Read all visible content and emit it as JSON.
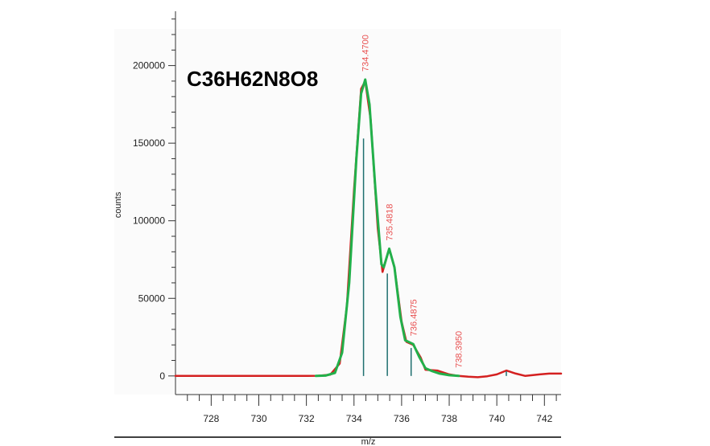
{
  "chart_data": {
    "type": "line",
    "title": "C36H62N8O8",
    "xlabel": "m/z",
    "ylabel": "counts",
    "xlim": [
      726.5,
      742.7
    ],
    "ylim": [
      -12000,
      235000
    ],
    "x_ticks": [
      728,
      730,
      732,
      734,
      736,
      738,
      740,
      742
    ],
    "y_ticks": [
      0,
      50000,
      100000,
      150000,
      200000
    ],
    "grid": false,
    "colors": {
      "measured": "#d42020",
      "fit": "#22b04a",
      "sticks": "#1f6f6f",
      "peak_labels": "#e85050",
      "axis": "#333333"
    },
    "series": [
      {
        "style": "measured",
        "points": [
          [
            726.5,
            0
          ],
          [
            732,
            0
          ],
          [
            732.5,
            100
          ],
          [
            733,
            800
          ],
          [
            733.4,
            8000
          ],
          [
            733.7,
            45000
          ],
          [
            734,
            120000
          ],
          [
            734.3,
            185000
          ],
          [
            734.47,
            190000
          ],
          [
            734.7,
            165000
          ],
          [
            735,
            95000
          ],
          [
            735.2,
            67000
          ],
          [
            735.48,
            82000
          ],
          [
            735.7,
            70000
          ],
          [
            736,
            35000
          ],
          [
            736.2,
            22000
          ],
          [
            736.49,
            20000
          ],
          [
            736.8,
            12000
          ],
          [
            737,
            4000
          ],
          [
            737.5,
            3500
          ],
          [
            738,
            1000
          ],
          [
            738.39,
            0
          ],
          [
            738.8,
            -500
          ],
          [
            739.2,
            -800
          ],
          [
            739.6,
            -200
          ],
          [
            740,
            1000
          ],
          [
            740.4,
            3500
          ],
          [
            740.8,
            1500
          ],
          [
            741.2,
            0
          ],
          [
            741.8,
            1000
          ],
          [
            742.2,
            1500
          ],
          [
            742.7,
            1500
          ]
        ]
      },
      {
        "style": "fit",
        "points": [
          [
            732.4,
            0
          ],
          [
            732.8,
            200
          ],
          [
            733.2,
            2000
          ],
          [
            733.5,
            15000
          ],
          [
            733.8,
            60000
          ],
          [
            734.1,
            140000
          ],
          [
            734.3,
            182000
          ],
          [
            734.47,
            191000
          ],
          [
            734.65,
            175000
          ],
          [
            734.9,
            120000
          ],
          [
            735.15,
            72000
          ],
          [
            735.25,
            70000
          ],
          [
            735.48,
            82000
          ],
          [
            735.7,
            70000
          ],
          [
            735.95,
            38000
          ],
          [
            736.15,
            23000
          ],
          [
            736.49,
            20500
          ],
          [
            736.75,
            12000
          ],
          [
            737,
            5000
          ],
          [
            737.3,
            3000
          ],
          [
            737.6,
            1500
          ],
          [
            738,
            500
          ],
          [
            738.4,
            0
          ]
        ]
      }
    ],
    "sticks": [
      {
        "x": 734.4,
        "y": 153000
      },
      {
        "x": 735.4,
        "y": 66000
      },
      {
        "x": 736.4,
        "y": 18000
      },
      {
        "x": 740.4,
        "y": 3000
      }
    ],
    "peak_labels": [
      {
        "x": 734.47,
        "y": 191000,
        "text": "734.4700"
      },
      {
        "x": 735.48,
        "y": 82000,
        "text": "735.4818"
      },
      {
        "x": 736.49,
        "y": 20500,
        "text": "736.4875"
      },
      {
        "x": 738.39,
        "y": 0,
        "text": "738.3950"
      }
    ]
  }
}
